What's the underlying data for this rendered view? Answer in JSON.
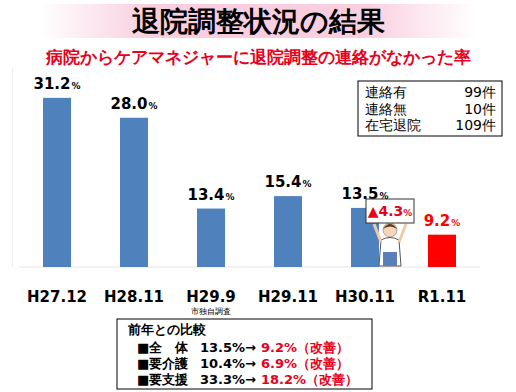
{
  "chart_data": {
    "type": "bar",
    "title": "退院調整状況の結果",
    "subtitle": "病院からケアマネジャーに退院調整の連絡がなかった率",
    "categories": [
      "H27.12",
      "H28.11",
      "H29.9",
      "H29.11",
      "H30.11",
      "R1.11"
    ],
    "values": [
      31.2,
      28.0,
      13.4,
      15.4,
      13.5,
      9.2
    ],
    "value_labels": [
      "31.2%",
      "28.0%",
      "13.4%",
      "15.4%",
      "13.5%",
      "9.2%"
    ],
    "colors": [
      "#4f81bd",
      "#4f81bd",
      "#4f81bd",
      "#4f81bd",
      "#4f81bd",
      "#ff0000"
    ],
    "ylim": [
      4,
      36
    ],
    "yticks": [],
    "tick_labels": "x",
    "grid": false,
    "data_labels": true,
    "annotations": {
      "category_note": {
        "category": "H29.9",
        "text": "市独自調査"
      },
      "change": {
        "category": "R1.11",
        "text": "▲4.3%"
      },
      "counts": [
        {
          "label": "連絡有",
          "value": "99件"
        },
        {
          "label": "連絡無",
          "value": "10件"
        },
        {
          "label": "在宅退院",
          "value": "109件"
        }
      ],
      "comparison": {
        "title": "前年との比較",
        "rows": [
          {
            "label": "■全　体",
            "before": "13.5%→",
            "after": "9.2%（改善）"
          },
          {
            "label": "■要介護",
            "before": "10.4%→",
            "after": "6.9%（改善）"
          },
          {
            "label": "■要支援",
            "before": "33.3%→",
            "after": "18.2%（改善）"
          }
        ]
      }
    }
  }
}
